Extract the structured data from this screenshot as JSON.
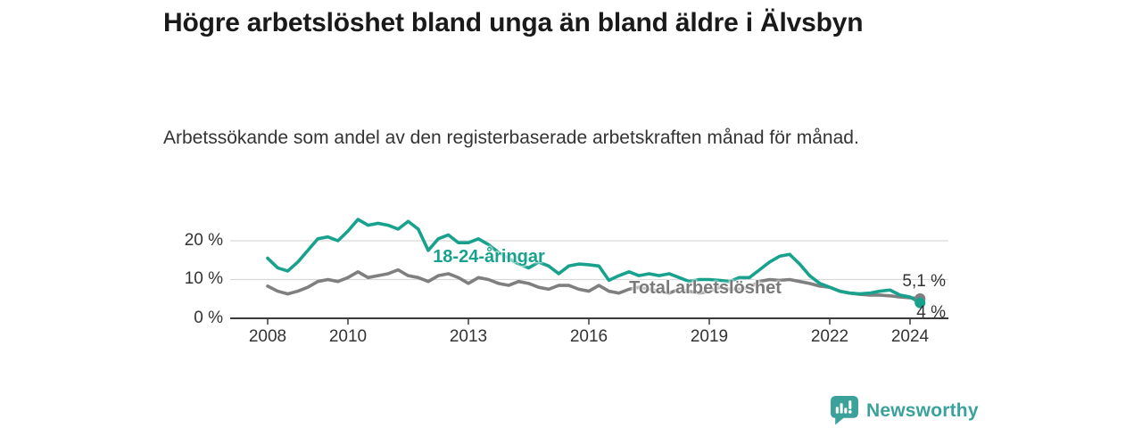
{
  "chart_data": {
    "type": "line",
    "title": "Högre arbetslöshet bland unga än bland äldre i Älvsbyn",
    "subtitle": "Arbetssökande som andel av den registerbaserade arbetskraften månad för månad.",
    "unit": "%",
    "grid": "horizontal",
    "legend_position": "inline-labels",
    "xlim": [
      2007.1,
      2025.1
    ],
    "ylim": [
      0,
      27
    ],
    "colors": {
      "grid": "#d9d9d9",
      "axis": "#3a3a3a"
    },
    "y_ticks": [
      {
        "label": "0 %",
        "value": 0
      },
      {
        "label": "10 %",
        "value": 10
      },
      {
        "label": "20 %",
        "value": 20
      }
    ],
    "x_ticks": [
      {
        "label": "2008",
        "year": 2008
      },
      {
        "label": "2010",
        "year": 2010
      },
      {
        "label": "2013",
        "year": 2013
      },
      {
        "label": "2016",
        "year": 2016
      },
      {
        "label": "2019",
        "year": 2019
      },
      {
        "label": "2022",
        "year": 2022
      },
      {
        "label": "2024",
        "year": 2024
      }
    ],
    "x": [
      2008,
      2008.25,
      2008.5,
      2008.75,
      2009,
      2009.25,
      2009.5,
      2009.75,
      2010,
      2010.25,
      2010.5,
      2010.75,
      2011,
      2011.25,
      2011.5,
      2011.75,
      2012,
      2012.25,
      2012.5,
      2012.75,
      2013,
      2013.25,
      2013.5,
      2013.75,
      2014,
      2014.25,
      2014.5,
      2014.75,
      2015,
      2015.25,
      2015.5,
      2015.75,
      2016,
      2016.25,
      2016.5,
      2016.75,
      2017,
      2017.25,
      2017.5,
      2017.75,
      2018,
      2018.25,
      2018.5,
      2018.75,
      2019,
      2019.25,
      2019.5,
      2019.75,
      2020,
      2020.25,
      2020.5,
      2020.75,
      2021,
      2021.25,
      2021.5,
      2021.75,
      2022,
      2022.25,
      2022.5,
      2022.75,
      2023,
      2023.25,
      2023.5,
      2023.75,
      2024,
      2024.25
    ],
    "series": [
      {
        "name": "Total arbetslöshet",
        "color": "#7f7f7f",
        "end_value_label": "5,1 %",
        "values": [
          8.3,
          7.0,
          6.3,
          7.0,
          8.0,
          9.5,
          10.0,
          9.5,
          10.5,
          12.0,
          10.5,
          11.0,
          11.5,
          12.5,
          11.0,
          10.5,
          9.5,
          11.0,
          11.5,
          10.5,
          9.0,
          10.5,
          10.0,
          9.0,
          8.5,
          9.5,
          9.0,
          8.0,
          7.5,
          8.5,
          8.5,
          7.5,
          7.0,
          8.5,
          7.0,
          6.5,
          7.5,
          8.0,
          7.5,
          7.0,
          6.5,
          7.5,
          7.0,
          6.5,
          7.0,
          8.0,
          7.5,
          7.5,
          8.0,
          9.5,
          10.0,
          9.8,
          10.0,
          9.5,
          9.0,
          8.3,
          8.0,
          7.0,
          6.5,
          6.2,
          6.0,
          6.0,
          5.8,
          5.5,
          5.3,
          5.1
        ]
      },
      {
        "name": "18-24-åringar",
        "color": "#18a28e",
        "end_value_label": "4 %",
        "values": [
          15.5,
          13.0,
          12.2,
          14.5,
          17.5,
          20.5,
          21.0,
          20.0,
          22.5,
          25.5,
          24.0,
          24.5,
          24.0,
          23.0,
          25.0,
          23.0,
          17.5,
          20.5,
          21.5,
          19.5,
          19.5,
          20.5,
          19.0,
          17.0,
          15.5,
          14.0,
          13.0,
          14.5,
          13.5,
          11.5,
          13.5,
          14.0,
          13.8,
          13.5,
          9.8,
          11.0,
          12.0,
          11.0,
          11.5,
          11.0,
          11.5,
          10.5,
          9.5,
          10.0,
          10.0,
          9.8,
          9.5,
          10.5,
          10.5,
          12.5,
          14.5,
          16.0,
          16.5,
          14.0,
          11.0,
          9.0,
          8.0,
          7.0,
          6.5,
          6.3,
          6.5,
          7.0,
          7.3,
          6.0,
          5.5,
          4.0
        ]
      }
    ],
    "end_labels": [
      {
        "text": "5,1 %",
        "series": "Total arbetslöshet"
      },
      {
        "text": "4 %",
        "series": "18-24-åringar"
      }
    ]
  },
  "branding": {
    "logo_text": "Newsworthy",
    "logo_color": "#3aa29a",
    "logo_icon": "bar-chart-speech-bubble"
  }
}
